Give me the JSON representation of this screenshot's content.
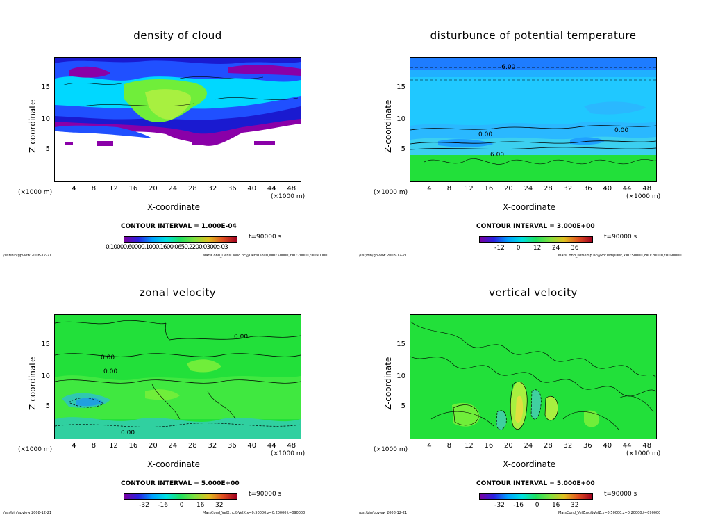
{
  "colors": {
    "white": "#ffffff",
    "purple": "#8a00a8",
    "deep_blue": "#1a1ad0",
    "blue": "#2050ff",
    "cyan": "#00d8ff",
    "light_cyan": "#40f0f0",
    "green": "#22e03a",
    "light_green": "#70ee3a",
    "yellow_green": "#a8f040",
    "blue_top": "#1e7cff",
    "sky": "#20c8ff"
  },
  "panels": [
    {
      "title": "density of cloud",
      "x_unit": "(×1000 m)",
      "y_unit": "(×1000 m)",
      "xlabel": "X-coordinate",
      "ylabel": "Z-coordinate",
      "contour_interval": "CONTOUR INTERVAL = 1.000E-04",
      "time": "t=90000 s",
      "colorbar_ticks_text": "0.10000.60000.1000.1600.0650.2200.0300e-03",
      "footer_left": "/usr/bin/gpview   2008-12-21",
      "footer_right": "MarsCond_DensCloud.nc@DensCloud,x=0:50000,z=0:20000,t=090000"
    },
    {
      "title": "disturbunce of potential temperature",
      "x_unit": "(×1000 m)",
      "y_unit": "(×1000 m)",
      "xlabel": "X-coordinate",
      "ylabel": "Z-coordinate",
      "contour_interval": "CONTOUR INTERVAL = 3.000E+00",
      "time": "t=90000 s",
      "colorbar_ticks": [
        "-12",
        "0",
        "12",
        "24",
        "36"
      ],
      "footer_left": "/usr/bin/gpview   2008-12-21",
      "footer_right": "MarsCond_PotTemp.nc@PotTempDist,x=0:50000,z=0:20000,t=090000",
      "contour_labels": [
        "-6.00",
        "0.00",
        "0.00",
        "6.00"
      ]
    },
    {
      "title": "zonal velocity",
      "x_unit": "(×1000 m)",
      "y_unit": "(×1000 m)",
      "xlabel": "X-coordinate",
      "ylabel": "Z-coordinate",
      "contour_interval": "CONTOUR INTERVAL = 5.000E+00",
      "time": "t=90000 s",
      "colorbar_ticks": [
        "-32",
        "-16",
        "0",
        "16",
        "32"
      ],
      "footer_left": "/usr/bin/gpview   2008-12-21",
      "footer_right": "MarsCond_VelX.nc@VelX,x=0:50000,z=0:20000,t=090000",
      "contour_labels": [
        "0.00",
        "0.00",
        "0.00",
        "0.00"
      ]
    },
    {
      "title": "vertical velocity",
      "x_unit": "(×1000 m)",
      "y_unit": "(×1000 m)",
      "xlabel": "X-coordinate",
      "ylabel": "Z-coordinate",
      "contour_interval": "CONTOUR INTERVAL = 5.000E+00",
      "time": "t=90000 s",
      "colorbar_ticks": [
        "-32",
        "-16",
        "0",
        "16",
        "32"
      ],
      "footer_left": "/usr/bin/gpview   2008-12-21",
      "footer_right": "MarsCond_VelZ.nc@VelZ,x=0:50000,z=0:20000,t=090000"
    }
  ],
  "chart_data": [
    {
      "type": "heatmap",
      "title": "density of cloud",
      "xlabel": "X-coordinate",
      "ylabel": "Z-coordinate",
      "x_ticks": [
        4,
        8,
        12,
        16,
        20,
        24,
        28,
        32,
        36,
        40,
        44,
        48
      ],
      "y_ticks": [
        5,
        10,
        15
      ],
      "xlim": [
        0,
        50
      ],
      "ylim": [
        0,
        20
      ],
      "contour_interval": 0.0001,
      "time_s": 90000
    },
    {
      "type": "heatmap",
      "title": "disturbunce of potential temperature",
      "xlabel": "X-coordinate",
      "ylabel": "Z-coordinate",
      "x_ticks": [
        4,
        8,
        12,
        16,
        20,
        24,
        28,
        32,
        36,
        40,
        44,
        48
      ],
      "y_ticks": [
        5,
        10,
        15
      ],
      "xlim": [
        0,
        50
      ],
      "ylim": [
        0,
        20
      ],
      "contour_interval": 3.0,
      "colorbar_range": [
        -12,
        36
      ],
      "time_s": 90000
    },
    {
      "type": "heatmap",
      "title": "zonal velocity",
      "xlabel": "X-coordinate",
      "ylabel": "Z-coordinate",
      "x_ticks": [
        4,
        8,
        12,
        16,
        20,
        24,
        28,
        32,
        36,
        40,
        44,
        48
      ],
      "y_ticks": [
        5,
        10,
        15
      ],
      "xlim": [
        0,
        50
      ],
      "ylim": [
        0,
        20
      ],
      "contour_interval": 5.0,
      "colorbar_range": [
        -32,
        32
      ],
      "time_s": 90000
    },
    {
      "type": "heatmap",
      "title": "vertical velocity",
      "xlabel": "X-coordinate",
      "ylabel": "Z-coordinate",
      "x_ticks": [
        4,
        8,
        12,
        16,
        20,
        24,
        28,
        32,
        36,
        40,
        44,
        48
      ],
      "y_ticks": [
        5,
        10,
        15
      ],
      "xlim": [
        0,
        50
      ],
      "ylim": [
        0,
        20
      ],
      "contour_interval": 5.0,
      "colorbar_range": [
        -32,
        32
      ],
      "time_s": 90000
    }
  ]
}
